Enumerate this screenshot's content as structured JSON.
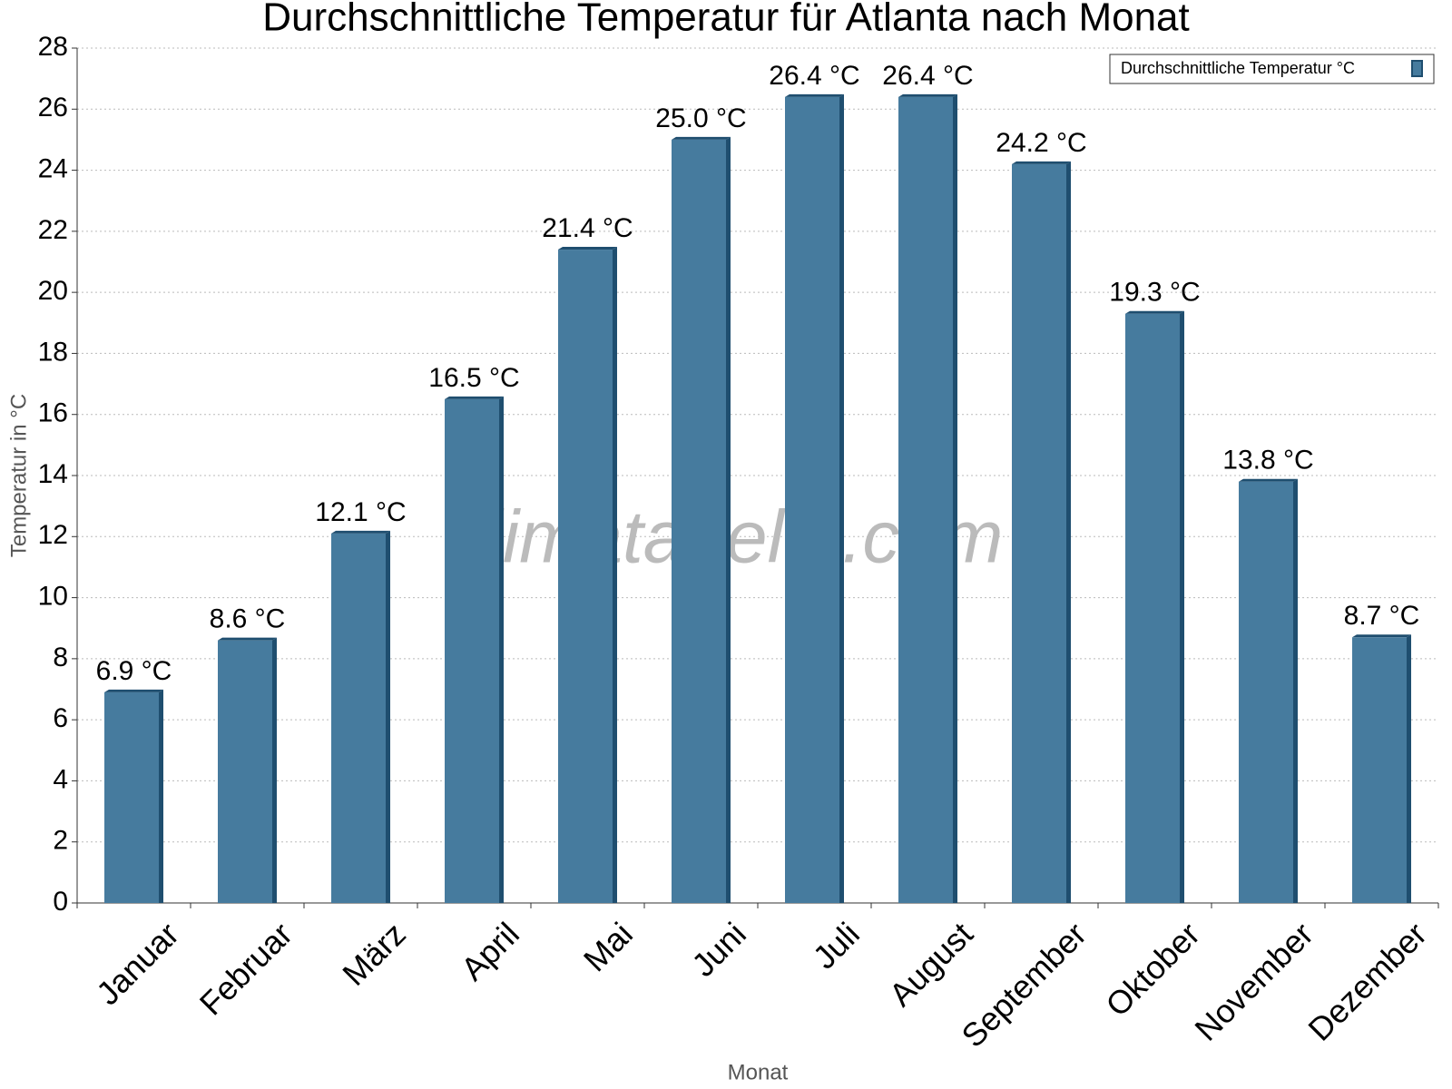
{
  "chart_data": {
    "type": "bar",
    "title": "Durchschnittliche Temperatur für Atlanta nach Monat",
    "x_label": "Monat",
    "y_label": "Temperatur in °C",
    "watermark": "klimatabelle.com",
    "categories": [
      "Januar",
      "Februar",
      "März",
      "April",
      "Mai",
      "Juni",
      "Juli",
      "August",
      "September",
      "Oktober",
      "November",
      "Dezember"
    ],
    "series": [
      {
        "name": "Durchschnittliche Temperatur °C",
        "color": "#467b9e",
        "values": [
          6.9,
          8.6,
          12.1,
          16.5,
          21.4,
          25.0,
          26.4,
          26.4,
          24.2,
          19.3,
          13.8,
          8.7
        ],
        "value_labels": [
          "6.9 °C",
          "8.6 °C",
          "12.1 °C",
          "16.5 °C",
          "21.4 °C",
          "25.0 °C",
          "26.4 °C",
          "26.4 °C",
          "24.2 °C",
          "19.3 °C",
          "13.8 °C",
          "8.7 °C"
        ]
      }
    ],
    "ylim": [
      0,
      28
    ],
    "yticks": [
      0,
      2,
      4,
      6,
      8,
      10,
      12,
      14,
      16,
      18,
      20,
      22,
      24,
      26,
      28
    ],
    "grid": true,
    "legend": "top-right"
  }
}
